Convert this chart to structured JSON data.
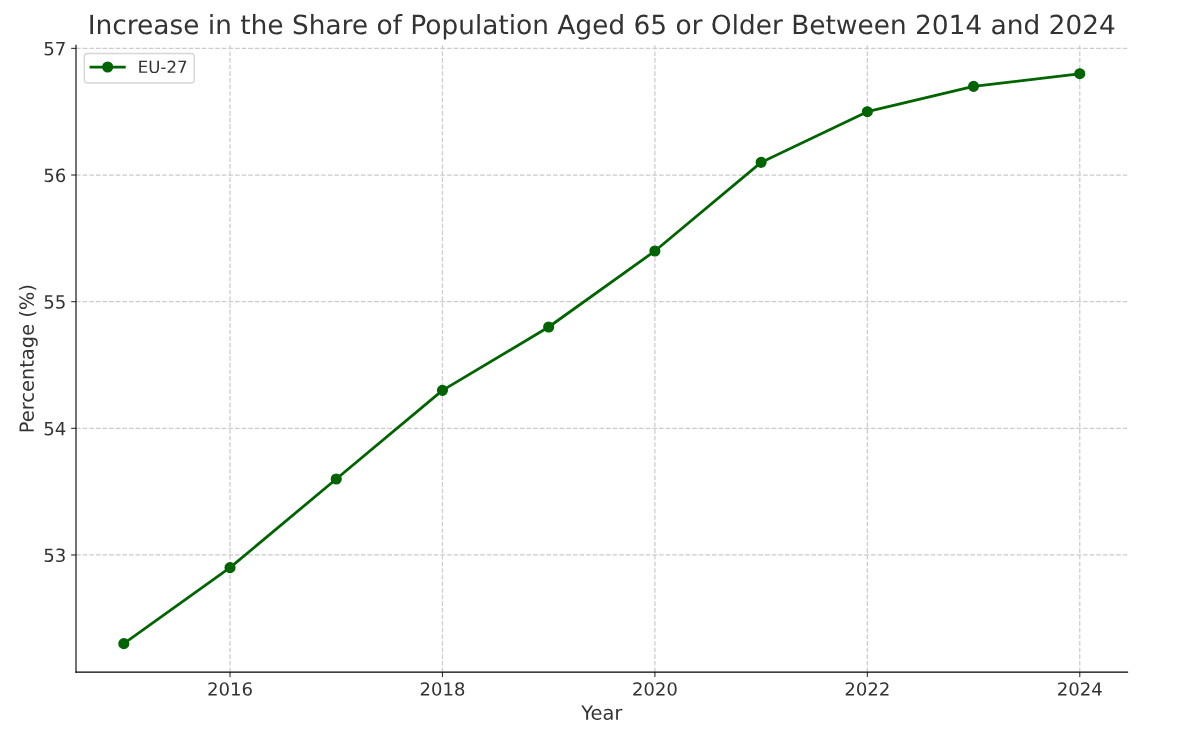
{
  "chart_data": {
    "type": "line",
    "title": "Increase in the Share of Population Aged 65 or Older Between 2014 and 2024",
    "xlabel": "Year",
    "ylabel": "Percentage (%)",
    "x": [
      2015,
      2016,
      2017,
      2018,
      2019,
      2020,
      2021,
      2022,
      2023,
      2024
    ],
    "series": [
      {
        "name": "EU-27",
        "color": "#006400",
        "values": [
          52.3,
          52.9,
          53.6,
          54.3,
          54.8,
          55.4,
          56.1,
          56.5,
          56.7,
          56.8
        ]
      }
    ],
    "xlim": [
      2014.55,
      2024.45
    ],
    "xticks": [
      2016,
      2018,
      2020,
      2022,
      2024
    ],
    "ylim": [
      52.075,
      57.025
    ],
    "yticks": [
      53,
      54,
      55,
      56,
      57
    ],
    "grid": true,
    "legend": "top left",
    "marker": "circle",
    "line_style": "solid"
  }
}
